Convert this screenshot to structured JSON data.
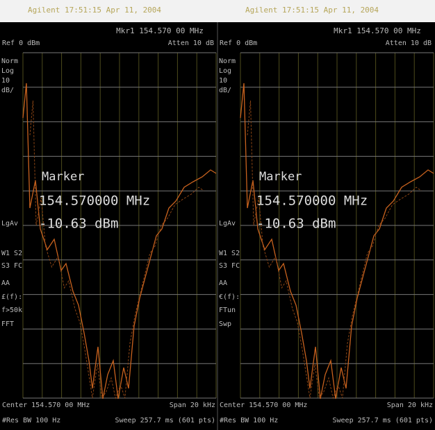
{
  "panels": [
    {
      "header": "Agilent 17:51:15 Apr 11, 2004",
      "marker_readout": "Mkr1 154.570 00 MHz",
      "ref": "Ref 0 dBm",
      "atten": "Atten 10 dB",
      "side_labels": [
        "Norm",
        "Log",
        "10",
        "dB/",
        "LgAv",
        "W1 S2",
        "S3 FC",
        "AA",
        "£(f):",
        "f>50k",
        "FFT"
      ],
      "marker": {
        "title": "Marker",
        "frequency": "154.570000 MHz",
        "amplitude": "-10.63 dBm"
      },
      "center": "Center 154.570 00 MHz",
      "span": "Span 20 kHz",
      "res_bw": "#Res BW 100 Hz",
      "sweep": "Sweep 257.7 ms (601 pts)"
    },
    {
      "header": "Agilent 17:51:15 Apr 11, 2004",
      "marker_readout": "Mkr1 154.570 00 MHz",
      "ref": "Ref 0 dBm",
      "atten": "Atten 10 dB",
      "side_labels": [
        "Norm",
        "Log",
        "10",
        "dB/",
        "LgAv",
        "W1 S2",
        "S3 FC",
        "AA",
        "€(f):",
        "FTun",
        "Swp"
      ],
      "marker": {
        "title": "Marker",
        "frequency": "154.570000 MHz",
        "amplitude": "-10.63 dBm"
      },
      "center": "Center 154.570 00 MHz",
      "span": "Span 20 kHz",
      "res_bw": "#Res BW 100 Hz",
      "sweep": "Sweep 257.7 ms (601 pts)"
    }
  ]
}
